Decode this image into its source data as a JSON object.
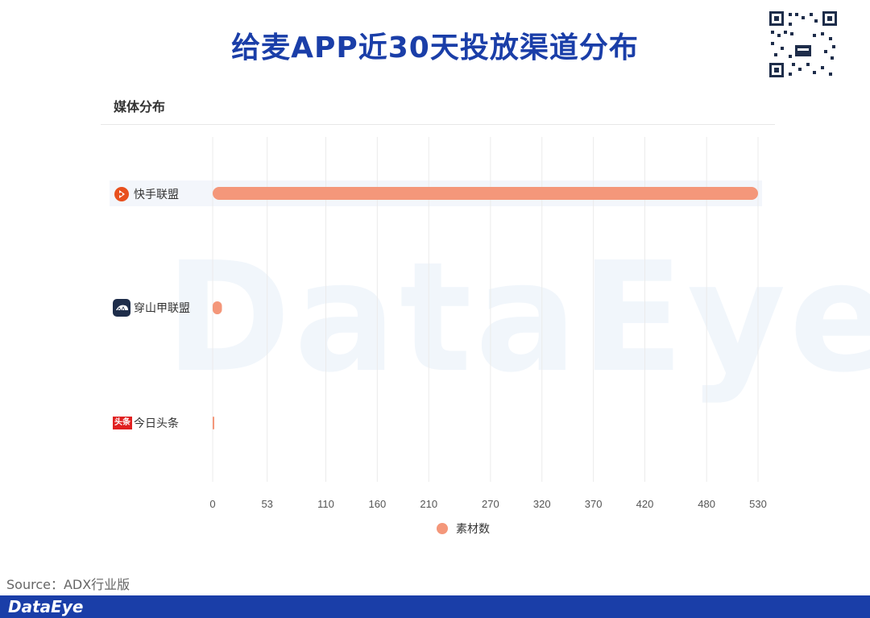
{
  "header": {
    "title": "给麦APP近30天投放渠道分布"
  },
  "section": {
    "title": "媒体分布"
  },
  "watermark": "DataEye",
  "chart_data": {
    "type": "bar",
    "orientation": "horizontal",
    "categories": [
      "快手联盟",
      "穿山甲联盟",
      "今日头条"
    ],
    "series": [
      {
        "name": "素材数",
        "values": [
          530,
          9,
          1
        ],
        "color": "#f4977a"
      }
    ],
    "xticks": [
      "0",
      "53",
      "110",
      "160",
      "210",
      "270",
      "320",
      "370",
      "420",
      "480",
      "530"
    ],
    "xlim": [
      0,
      530
    ],
    "grid": true,
    "legend_position": "bottom"
  },
  "legend": {
    "label": "素材数"
  },
  "footer": {
    "source": "Source：ADX行业版",
    "brand": "DataEye"
  },
  "colors": {
    "title": "#1a3ea8",
    "bar": "#f4977a",
    "footer": "#1a3ea8",
    "kuaishou": "#e8501e",
    "toutiao": "#e02020",
    "pangle": "#1e2d4a"
  },
  "icons": [
    "kuaishou-logo-icon",
    "pangolin-logo-icon",
    "toutiao-logo-icon",
    "qr-code-icon"
  ],
  "toutiao_icon_text": "头条"
}
